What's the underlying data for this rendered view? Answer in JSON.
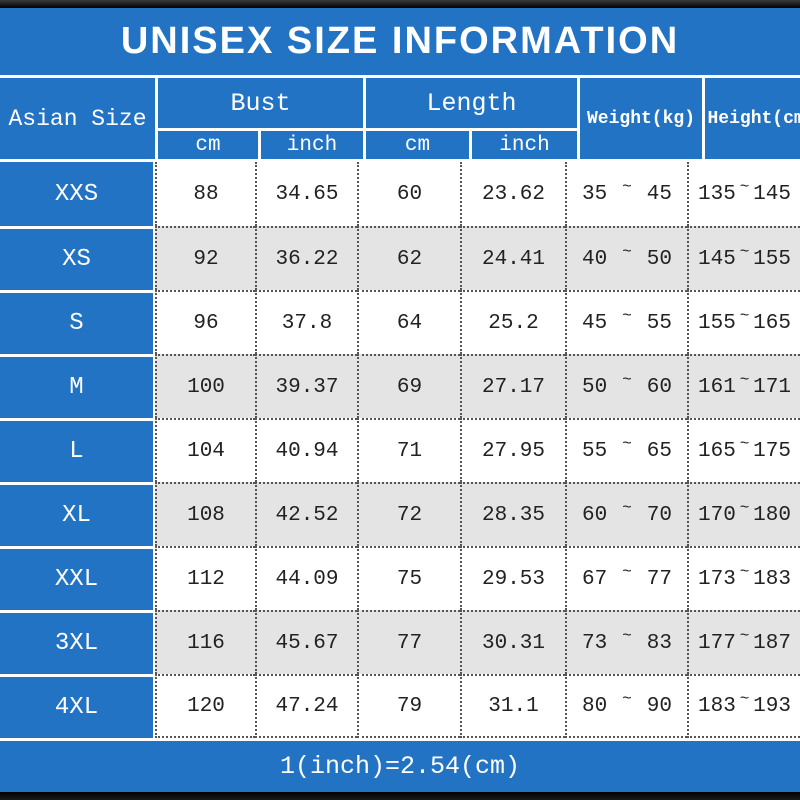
{
  "title": "UNISEX SIZE INFORMATION",
  "header": {
    "size_column": "Asian Size",
    "bust": {
      "label": "Bust",
      "units": [
        "cm",
        "inch"
      ]
    },
    "length": {
      "label": "Length",
      "units": [
        "cm",
        "inch"
      ]
    },
    "weight_label": "Weight(kg)",
    "height_label": "Height(cm)"
  },
  "range_separator": "~",
  "rows": [
    {
      "size": "XXS",
      "bust_cm": "88",
      "bust_inch": "34.65",
      "length_cm": "60",
      "length_inch": "23.62",
      "weight_low": "35",
      "weight_high": "45",
      "height_low": "135",
      "height_high": "145"
    },
    {
      "size": "XS",
      "bust_cm": "92",
      "bust_inch": "36.22",
      "length_cm": "62",
      "length_inch": "24.41",
      "weight_low": "40",
      "weight_high": "50",
      "height_low": "145",
      "height_high": "155"
    },
    {
      "size": "S",
      "bust_cm": "96",
      "bust_inch": "37.8",
      "length_cm": "64",
      "length_inch": "25.2",
      "weight_low": "45",
      "weight_high": "55",
      "height_low": "155",
      "height_high": "165"
    },
    {
      "size": "M",
      "bust_cm": "100",
      "bust_inch": "39.37",
      "length_cm": "69",
      "length_inch": "27.17",
      "weight_low": "50",
      "weight_high": "60",
      "height_low": "161",
      "height_high": "171"
    },
    {
      "size": "L",
      "bust_cm": "104",
      "bust_inch": "40.94",
      "length_cm": "71",
      "length_inch": "27.95",
      "weight_low": "55",
      "weight_high": "65",
      "height_low": "165",
      "height_high": "175"
    },
    {
      "size": "XL",
      "bust_cm": "108",
      "bust_inch": "42.52",
      "length_cm": "72",
      "length_inch": "28.35",
      "weight_low": "60",
      "weight_high": "70",
      "height_low": "170",
      "height_high": "180"
    },
    {
      "size": "XXL",
      "bust_cm": "112",
      "bust_inch": "44.09",
      "length_cm": "75",
      "length_inch": "29.53",
      "weight_low": "67",
      "weight_high": "77",
      "height_low": "173",
      "height_high": "183"
    },
    {
      "size": "3XL",
      "bust_cm": "116",
      "bust_inch": "45.67",
      "length_cm": "77",
      "length_inch": "30.31",
      "weight_low": "73",
      "weight_high": "83",
      "height_low": "177",
      "height_high": "187"
    },
    {
      "size": "4XL",
      "bust_cm": "120",
      "bust_inch": "47.24",
      "length_cm": "79",
      "length_inch": "31.1",
      "weight_low": "80",
      "weight_high": "90",
      "height_low": "183",
      "height_high": "193"
    }
  ],
  "footer": "1(inch)=2.54(cm)",
  "colors": {
    "accent_blue": "#2373c5",
    "row_alt": "#e5e4e5",
    "bar_black": "#0e0e0e",
    "text_dark": "#222222"
  }
}
